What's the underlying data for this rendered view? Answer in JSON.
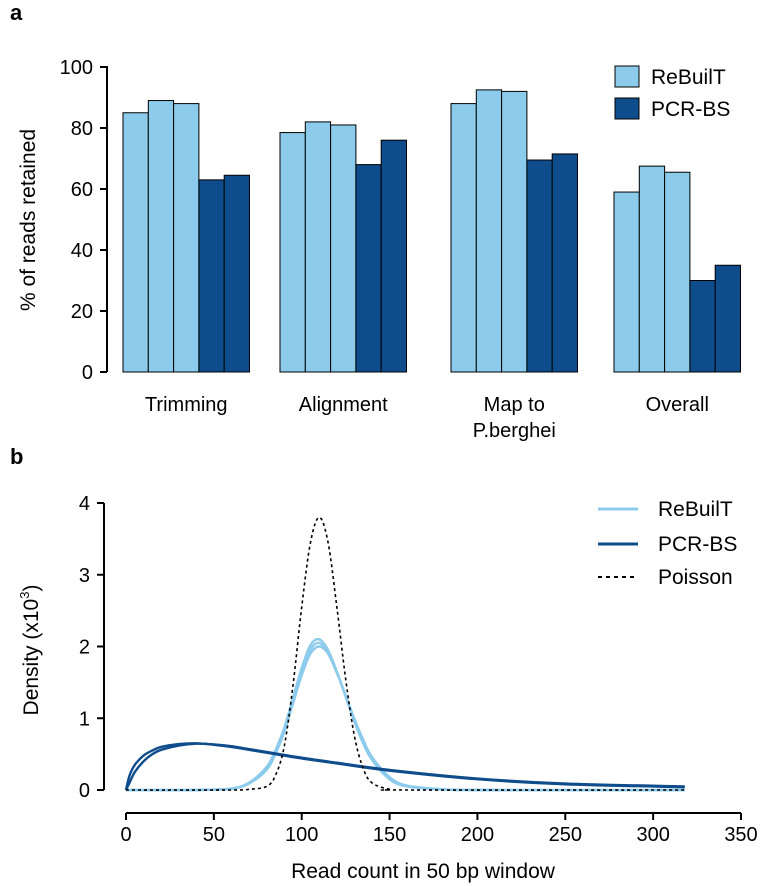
{
  "colors": {
    "rebuilt": "#8ccbec",
    "pcrbs": "#0f4c8c",
    "axis": "#000000"
  },
  "chart_data": [
    {
      "type": "bar",
      "panel_label": "a",
      "categories": [
        [
          "Trimming"
        ],
        [
          "Alignment"
        ],
        [
          "Map to",
          "P.berghei"
        ],
        [
          "Overall"
        ]
      ],
      "series": [
        {
          "name": "ReBuilT",
          "values": [
            [
              85,
              89,
              88
            ],
            [
              78.5,
              82,
              81
            ],
            [
              88,
              92.5,
              92
            ],
            [
              59,
              67.5,
              65.5
            ]
          ]
        },
        {
          "name": "PCR-BS",
          "values": [
            [
              63,
              64.5
            ],
            [
              68,
              76
            ],
            [
              69.5,
              71.5
            ],
            [
              30,
              35
            ]
          ]
        }
      ],
      "title": "",
      "xlabel": "",
      "ylabel": "% of reads retained",
      "ylim": [
        0,
        100
      ],
      "yticks": [
        "0",
        "20",
        "40",
        "60",
        "80",
        "100"
      ],
      "grid": false,
      "legend": "top-right"
    },
    {
      "type": "line",
      "panel_label": "b",
      "title": "",
      "xlabel": "Read count in 50 bp window",
      "ylabel_main": "Density (x10",
      "ylabel_sup": "3",
      "ylabel_close": ")",
      "xlim": [
        0,
        350
      ],
      "ylim": [
        0,
        4
      ],
      "xticks": [
        "0",
        "50",
        "100",
        "150",
        "200",
        "250",
        "300",
        "350"
      ],
      "yticks": [
        "0",
        "1",
        "2",
        "3",
        "4"
      ],
      "grid": false,
      "legend": "top-right",
      "series": [
        {
          "name": "ReBuilT",
          "style": "solid",
          "color_key": "rebuilt",
          "curves": [
            {
              "x": [
                0,
                40,
                60,
                70,
                80,
                85,
                90,
                95,
                100,
                105,
                110,
                115,
                120,
                125,
                130,
                135,
                140,
                150,
                160,
                180,
                200,
                318
              ],
              "y": [
                0,
                0,
                0.02,
                0.1,
                0.32,
                0.55,
                0.86,
                1.28,
                1.7,
                2.02,
                2.1,
                1.95,
                1.65,
                1.3,
                0.95,
                0.65,
                0.42,
                0.15,
                0.05,
                0.01,
                0,
                0
              ]
            },
            {
              "x": [
                0,
                40,
                60,
                70,
                80,
                85,
                90,
                95,
                100,
                105,
                110,
                115,
                120,
                125,
                130,
                135,
                140,
                150,
                160,
                180,
                200,
                318
              ],
              "y": [
                0,
                0,
                0.02,
                0.1,
                0.3,
                0.52,
                0.83,
                1.24,
                1.65,
                1.96,
                2.05,
                1.92,
                1.64,
                1.31,
                0.97,
                0.67,
                0.44,
                0.17,
                0.06,
                0.01,
                0,
                0
              ]
            },
            {
              "x": [
                0,
                40,
                60,
                70,
                80,
                85,
                90,
                95,
                100,
                105,
                110,
                115,
                120,
                125,
                130,
                135,
                140,
                150,
                160,
                180,
                200,
                318
              ],
              "y": [
                0,
                0,
                0.02,
                0.09,
                0.28,
                0.5,
                0.8,
                1.2,
                1.6,
                1.9,
                2.0,
                1.9,
                1.63,
                1.32,
                0.99,
                0.7,
                0.46,
                0.18,
                0.06,
                0.01,
                0,
                0
              ]
            }
          ]
        },
        {
          "name": "PCR-BS",
          "style": "solid",
          "color_key": "pcrbs",
          "curves": [
            {
              "x": [
                0,
                2,
                5,
                10,
                15,
                20,
                30,
                40,
                50,
                60,
                70,
                80,
                100,
                120,
                150,
                200,
                250,
                318
              ],
              "y": [
                0,
                0.2,
                0.35,
                0.48,
                0.55,
                0.6,
                0.64,
                0.65,
                0.63,
                0.6,
                0.56,
                0.52,
                0.44,
                0.37,
                0.27,
                0.15,
                0.08,
                0.04
              ]
            },
            {
              "x": [
                0,
                2,
                5,
                10,
                15,
                20,
                30,
                40,
                50,
                60,
                70,
                80,
                100,
                120,
                150,
                200,
                250,
                318
              ],
              "y": [
                0,
                0.1,
                0.25,
                0.4,
                0.5,
                0.56,
                0.62,
                0.645,
                0.635,
                0.61,
                0.57,
                0.53,
                0.45,
                0.38,
                0.28,
                0.16,
                0.09,
                0.05
              ]
            }
          ]
        },
        {
          "name": "Poisson",
          "style": "dashed",
          "color_key": "axis",
          "curves": [
            {
              "x": [
                0,
                60,
                70,
                80,
                85,
                90,
                95,
                100,
                105,
                110,
                115,
                120,
                125,
                130,
                135,
                140,
                150,
                160,
                318
              ],
              "y": [
                0,
                0,
                0.01,
                0.05,
                0.2,
                0.6,
                1.45,
                2.55,
                3.45,
                3.8,
                3.45,
                2.55,
                1.55,
                0.75,
                0.3,
                0.1,
                0.01,
                0,
                0
              ]
            }
          ]
        }
      ]
    }
  ]
}
